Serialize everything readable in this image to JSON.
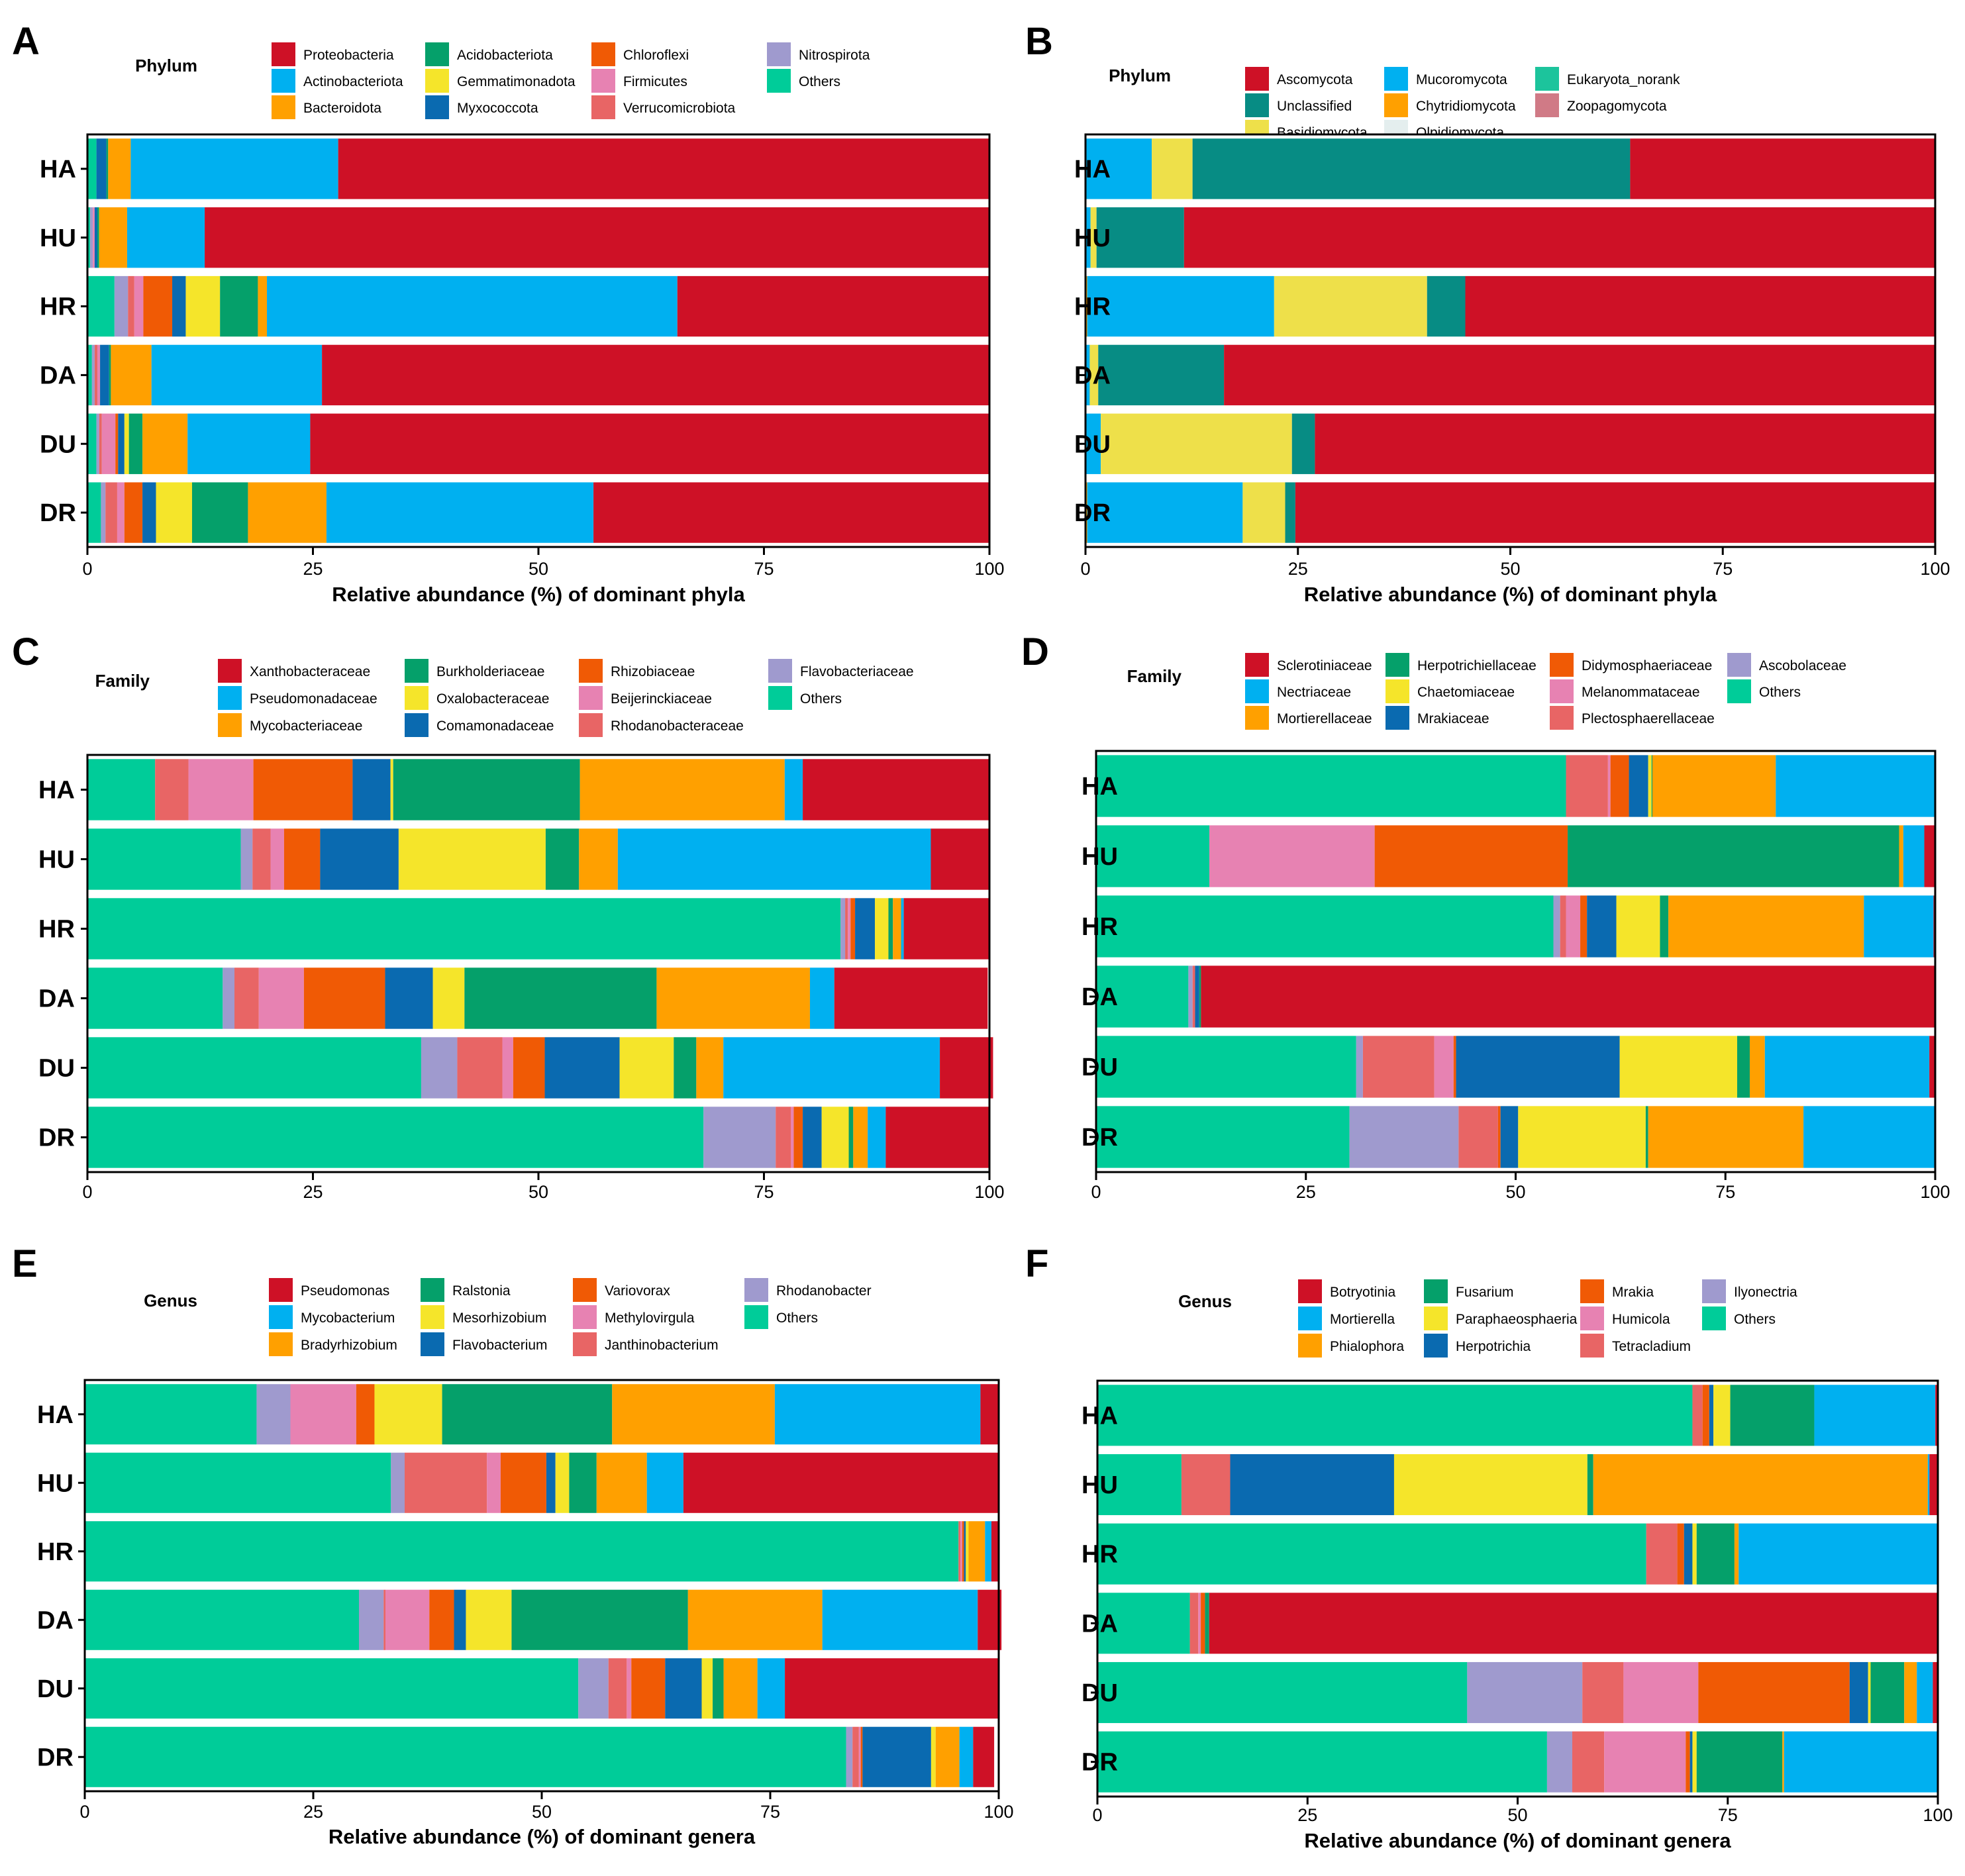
{
  "figure_title": "",
  "colors": {
    "Proteobacteria": "#CE1126",
    "Actinobacteriota": "#00B0F0",
    "Bacteroidota": "#FFA000",
    "Acidobacteriota": "#05A06A",
    "Gemmatimonadota": "#F5E52A",
    "Myxococcota": "#0A6AB0",
    "Chloroflexi": "#F05A05",
    "Firmicutes": "#E782B2",
    "Verrucomicrobiota": "#E86565",
    "Nitrospirota": "#9F9ACE",
    "Others": "#00CC99",
    "Ascomycota": "#CE1126",
    "Unclassified": "#078C84",
    "Basidiomycota": "#EEE04A",
    "Mucoromycota": "#00B0F0",
    "Chytridiomycota": "#FFA000",
    "Olpidiomycota": "#E4EEEE",
    "Eukaryota_norank": "#1CC49C",
    "Zoopagomycota": "#D07A86"
  },
  "chart_data": [
    {
      "panel": "A",
      "type": "bar",
      "orientation": "horizontal",
      "stacked": true,
      "legend_title": "Phylum",
      "legend": [
        "Proteobacteria",
        "Actinobacteriota",
        "Bacteroidota",
        "Acidobacteriota",
        "Gemmatimonadota",
        "Myxococcota",
        "Chloroflexi",
        "Firmicutes",
        "Verrucomicrobiota",
        "Nitrospirota",
        "Others"
      ],
      "categories": [
        "HA",
        "HU",
        "HR",
        "DA",
        "DU",
        "DR"
      ],
      "stack_order": [
        "Others",
        "Nitrospirota",
        "Verrucomicrobiota",
        "Firmicutes",
        "Chloroflexi",
        "Myxococcota",
        "Gemmatimonadota",
        "Acidobacteriota",
        "Bacteroidota",
        "Actinobacteriota",
        "Proteobacteria"
      ],
      "values": [
        [
          1.0,
          0.0,
          0.0,
          0.0,
          0.0,
          1.1,
          0.0,
          0.2,
          2.5,
          23.0,
          72.2
        ],
        [
          0.3,
          0.3,
          0.0,
          0.2,
          0.0,
          0.3,
          0.0,
          0.2,
          3.1,
          8.6,
          87.0
        ],
        [
          3.0,
          1.5,
          0.7,
          1.0,
          3.2,
          1.5,
          3.8,
          4.2,
          1.0,
          45.5,
          34.6
        ],
        [
          0.5,
          0.3,
          0.3,
          0.3,
          0.0,
          1.0,
          0.0,
          0.2,
          4.5,
          18.9,
          74.0
        ],
        [
          1.0,
          0.3,
          0.3,
          1.5,
          0.3,
          0.7,
          0.5,
          1.5,
          5.0,
          13.6,
          75.3
        ],
        [
          1.5,
          0.5,
          1.3,
          0.8,
          2.0,
          1.5,
          4.0,
          6.2,
          8.7,
          29.6,
          43.9
        ]
      ],
      "xlim": [
        0,
        100
      ],
      "xticks": [
        "0",
        "25",
        "50",
        "75",
        "100"
      ],
      "xlabel": "Relative abundance (%) of dominant phyla"
    },
    {
      "panel": "B",
      "type": "bar",
      "orientation": "horizontal",
      "stacked": true,
      "legend_title": "Phylum",
      "legend": [
        "Ascomycota",
        "Unclassified",
        "Basidiomycota",
        "Mucoromycota",
        "Chytridiomycota",
        "Olpidiomycota",
        "Eukaryota_norank",
        "Zoopagomycota"
      ],
      "categories": [
        "HA",
        "HU",
        "HR",
        "DA",
        "DU",
        "DR"
      ],
      "stack_order": [
        "Zoopagomycota",
        "Eukaryota_norank",
        "Olpidiomycota",
        "Chytridiomycota",
        "Mucoromycota",
        "Basidiomycota",
        "Unclassified",
        "Ascomycota"
      ],
      "values": [
        [
          0.0,
          0.0,
          0.0,
          0.0,
          7.8,
          4.8,
          51.5,
          35.9
        ],
        [
          0.0,
          0.0,
          0.0,
          0.0,
          0.6,
          0.7,
          10.3,
          88.4
        ],
        [
          0.0,
          0.0,
          0.0,
          0.2,
          22.0,
          18.0,
          4.5,
          55.3
        ],
        [
          0.0,
          0.0,
          0.0,
          0.0,
          0.5,
          1.0,
          14.8,
          83.7
        ],
        [
          0.0,
          0.0,
          0.0,
          0.0,
          1.8,
          22.5,
          2.7,
          73.0
        ],
        [
          0.0,
          0.0,
          0.0,
          0.2,
          18.3,
          5.0,
          1.2,
          75.3
        ]
      ],
      "xlim": [
        0,
        100
      ],
      "xticks": [
        "0",
        "25",
        "50",
        "75",
        "100"
      ],
      "xlabel": "Relative abundance (%) of dominant phyla"
    },
    {
      "panel": "C",
      "type": "bar",
      "orientation": "horizontal",
      "stacked": true,
      "legend_title": "Family",
      "legend": [
        "Xanthobacteraceae",
        "Pseudomonadaceae",
        "Mycobacteriaceae",
        "Burkholderiaceae",
        "Oxalobacteraceae",
        "Comamonadaceae",
        "Rhizobiaceae",
        "Beijerinckiaceae",
        "Rhodanobacteraceae",
        "Flavobacteriaceae",
        "Others"
      ],
      "categories": [
        "HA",
        "HU",
        "HR",
        "DA",
        "DU",
        "DR"
      ],
      "stack_order": [
        "Others",
        "Flavobacteriaceae",
        "Rhodanobacteraceae",
        "Beijerinckiaceae",
        "Rhizobiaceae",
        "Comamonadaceae",
        "Oxalobacteraceae",
        "Burkholderiaceae",
        "Mycobacteriaceae",
        "Pseudomonadaceae",
        "Xanthobacteraceae"
      ],
      "values": [
        [
          7.5,
          0.0,
          3.7,
          7.2,
          11.0,
          4.2,
          0.3,
          20.7,
          22.7,
          2.0,
          20.7
        ],
        [
          17.0,
          1.3,
          2.0,
          1.5,
          4.0,
          8.7,
          16.3,
          3.7,
          4.3,
          34.7,
          6.5
        ],
        [
          83.5,
          0.5,
          0.3,
          0.3,
          0.5,
          2.2,
          1.5,
          0.5,
          0.9,
          0.3,
          9.5
        ],
        [
          15.0,
          1.3,
          2.7,
          5.0,
          9.0,
          5.3,
          3.5,
          21.3,
          17.0,
          2.7,
          17.0
        ],
        [
          37.0,
          4.0,
          5.0,
          1.2,
          3.5,
          8.3,
          6.0,
          2.5,
          3.0,
          24.0,
          5.9
        ],
        [
          68.3,
          8.0,
          1.7,
          0.3,
          1.0,
          2.1,
          3.0,
          0.5,
          1.6,
          2.0,
          11.5
        ]
      ],
      "xlim": [
        0,
        100
      ],
      "xticks": [
        "0",
        "25",
        "50",
        "75",
        "100"
      ],
      "xlabel": ""
    },
    {
      "panel": "D",
      "type": "bar",
      "orientation": "horizontal",
      "stacked": true,
      "legend_title": "Family",
      "legend": [
        "Sclerotiniaceae",
        "Nectriaceae",
        "Mortierellaceae",
        "Herpotrichiellaceae",
        "Chaetomiaceae",
        "Mrakiaceae",
        "Didymosphaeriaceae",
        "Melanommataceae",
        "Plectosphaerellaceae",
        "Ascobolaceae",
        "Others"
      ],
      "categories": [
        "HA",
        "HU",
        "HR",
        "DA",
        "DU",
        "DR"
      ],
      "stack_order": [
        "Others",
        "Ascobolaceae",
        "Plectosphaerellaceae",
        "Melanommataceae",
        "Didymosphaeriaceae",
        "Mrakiaceae",
        "Chaetomiaceae",
        "Herpotrichiellaceae",
        "Mortierellaceae",
        "Nectriaceae",
        "Sclerotiniaceae"
      ],
      "values": [
        [
          56.0,
          0.0,
          5.0,
          0.3,
          2.2,
          2.3,
          0.4,
          0.1,
          14.7,
          19.0,
          0.0
        ],
        [
          13.5,
          0.0,
          0.0,
          19.7,
          23.0,
          0.0,
          0.0,
          39.5,
          0.5,
          2.5,
          1.3
        ],
        [
          54.5,
          0.8,
          0.7,
          1.7,
          0.8,
          3.5,
          5.2,
          1.0,
          23.3,
          8.3,
          0.2
        ],
        [
          11.0,
          0.5,
          0.3,
          0.0,
          0.0,
          0.5,
          0.0,
          0.2,
          0.0,
          0.0,
          87.5
        ],
        [
          31.0,
          0.8,
          8.5,
          2.3,
          0.3,
          19.5,
          14.0,
          1.5,
          1.8,
          19.6,
          0.7
        ],
        [
          30.2,
          13.0,
          4.7,
          0.0,
          0.3,
          2.1,
          15.2,
          0.3,
          18.5,
          15.7,
          0.0
        ]
      ],
      "xlim": [
        0,
        100
      ],
      "xticks": [
        "0",
        "25",
        "50",
        "75",
        "100"
      ],
      "xlabel": ""
    },
    {
      "panel": "E",
      "type": "bar",
      "orientation": "horizontal",
      "stacked": true,
      "legend_title": "Genus",
      "legend": [
        "Pseudomonas",
        "Mycobacterium",
        "Bradyrhizobium",
        "Ralstonia",
        "Mesorhizobium",
        "Flavobacterium",
        "Variovorax",
        "Methylovirgula",
        "Janthinobacterium",
        "Rhodanobacter",
        "Others"
      ],
      "categories": [
        "HA",
        "HU",
        "HR",
        "DA",
        "DU",
        "DR"
      ],
      "stack_order": [
        "Others",
        "Rhodanobacter",
        "Janthinobacterium",
        "Methylovirgula",
        "Variovorax",
        "Flavobacterium",
        "Mesorhizobium",
        "Ralstonia",
        "Bradyrhizobium",
        "Mycobacterium",
        "Pseudomonas"
      ],
      "values": [
        [
          18.8,
          3.7,
          0.0,
          7.2,
          2.0,
          0.0,
          7.4,
          18.6,
          17.8,
          22.5,
          2.0
        ],
        [
          33.5,
          1.5,
          9.0,
          1.5,
          5.0,
          1.0,
          1.5,
          3.0,
          5.5,
          4.0,
          34.5
        ],
        [
          95.6,
          0.0,
          0.2,
          0.2,
          0.2,
          0.2,
          0.3,
          0.0,
          1.8,
          0.7,
          0.8
        ],
        [
          30.0,
          2.7,
          0.2,
          4.8,
          2.7,
          1.3,
          5.0,
          19.3,
          14.7,
          17.0,
          2.6
        ],
        [
          54.0,
          3.3,
          2.0,
          0.5,
          3.7,
          4.0,
          1.2,
          1.2,
          3.7,
          3.0,
          23.4
        ],
        [
          83.3,
          0.7,
          0.7,
          0.2,
          0.2,
          7.5,
          0.5,
          0.0,
          2.6,
          1.5,
          2.3
        ]
      ],
      "xlim": [
        0,
        100
      ],
      "xticks": [
        "0",
        "25",
        "50",
        "75",
        "100"
      ],
      "xlabel": "Relative abundance (%) of dominant genera"
    },
    {
      "panel": "F",
      "type": "bar",
      "orientation": "horizontal",
      "stacked": true,
      "legend_title": "Genus",
      "legend": [
        "Botryotinia",
        "Mortierella",
        "Phialophora",
        "Fusarium",
        "Paraphaeosphaeria",
        "Herpotrichia",
        "Mrakia",
        "Humicola",
        "Tetracladium",
        "Ilyonectria",
        "Others"
      ],
      "categories": [
        "HA",
        "HU",
        "HR",
        "DA",
        "DU",
        "DR"
      ],
      "stack_order": [
        "Others",
        "Ilyonectria",
        "Tetracladium",
        "Humicola",
        "Mrakia",
        "Herpotrichia",
        "Paraphaeosphaeria",
        "Fusarium",
        "Phialophora",
        "Mortierella",
        "Botryotinia"
      ],
      "values": [
        [
          70.8,
          0.0,
          1.2,
          0.0,
          0.8,
          0.5,
          2.0,
          10.0,
          0.0,
          14.4,
          0.3
        ],
        [
          10.0,
          0.0,
          5.8,
          0.0,
          0.0,
          19.5,
          23.0,
          0.7,
          39.8,
          0.2,
          1.0
        ],
        [
          65.3,
          0.0,
          3.7,
          0.0,
          0.8,
          1.0,
          0.5,
          4.5,
          0.5,
          23.7,
          0.0
        ],
        [
          11.0,
          0.0,
          1.0,
          0.3,
          0.5,
          0.0,
          0.0,
          0.5,
          0.0,
          0.0,
          86.7
        ],
        [
          44.0,
          13.7,
          4.9,
          8.9,
          18.0,
          2.2,
          0.3,
          4.0,
          1.5,
          1.9,
          0.6
        ],
        [
          53.5,
          3.0,
          3.8,
          9.7,
          0.5,
          0.3,
          0.5,
          10.2,
          0.2,
          18.3,
          0.0
        ]
      ],
      "xlim": [
        0,
        100
      ],
      "xticks": [
        "0",
        "25",
        "50",
        "75",
        "100"
      ],
      "xlabel": "Relative abundance (%) of dominant genera"
    }
  ]
}
